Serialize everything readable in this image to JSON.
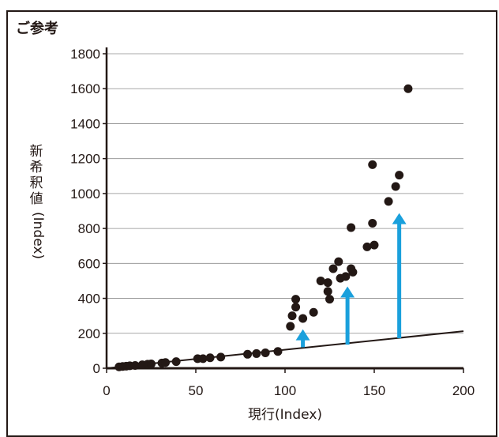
{
  "note": "ご参考",
  "chart_data": {
    "type": "scatter",
    "title": "",
    "xlabel": "現行(Index)",
    "ylabel": "新希釈値(Index)",
    "ylabel_vertical": "新希釈値",
    "ylabel_rotated": "(Index)",
    "xlim": [
      0,
      200
    ],
    "ylim": [
      0,
      1800
    ],
    "xticks": [
      "0",
      "50",
      "100",
      "150",
      "200"
    ],
    "yticks": [
      "0",
      "200",
      "400",
      "600",
      "800",
      "1000",
      "1200",
      "1400",
      "1600",
      "1800"
    ],
    "grid": "horizontal",
    "points": [
      [
        7,
        8
      ],
      [
        9,
        10
      ],
      [
        11,
        12
      ],
      [
        13,
        14
      ],
      [
        16,
        16
      ],
      [
        20,
        20
      ],
      [
        23,
        23
      ],
      [
        25,
        25
      ],
      [
        31,
        30
      ],
      [
        33,
        33
      ],
      [
        39,
        38
      ],
      [
        51,
        55
      ],
      [
        54,
        55
      ],
      [
        58,
        60
      ],
      [
        64,
        64
      ],
      [
        79,
        80
      ],
      [
        84,
        84
      ],
      [
        89,
        88
      ],
      [
        96,
        96
      ],
      [
        103,
        240
      ],
      [
        104,
        300
      ],
      [
        106,
        350
      ],
      [
        106,
        395
      ],
      [
        110,
        285
      ],
      [
        116,
        320
      ],
      [
        120,
        500
      ],
      [
        124,
        490
      ],
      [
        124,
        440
      ],
      [
        125,
        395
      ],
      [
        127,
        570
      ],
      [
        130,
        610
      ],
      [
        131,
        515
      ],
      [
        134,
        525
      ],
      [
        137,
        570
      ],
      [
        138,
        550
      ],
      [
        137,
        805
      ],
      [
        146,
        695
      ],
      [
        149,
        1165
      ],
      [
        149,
        830
      ],
      [
        150,
        705
      ],
      [
        158,
        955
      ],
      [
        162,
        1040
      ],
      [
        164,
        1105
      ],
      [
        169,
        1600
      ]
    ],
    "trend_line": [
      [
        0,
        0
      ],
      [
        200,
        212
      ]
    ],
    "arrows": [
      {
        "x": 110,
        "from": 120,
        "to": 205
      },
      {
        "x": 135,
        "from": 135,
        "to": 450
      },
      {
        "x": 164,
        "from": 172,
        "to": 870
      }
    ],
    "colors": {
      "points": "#231815",
      "arrows": "#1aa0dc",
      "grid": "#8c8c8c",
      "axis": "#231815"
    }
  }
}
